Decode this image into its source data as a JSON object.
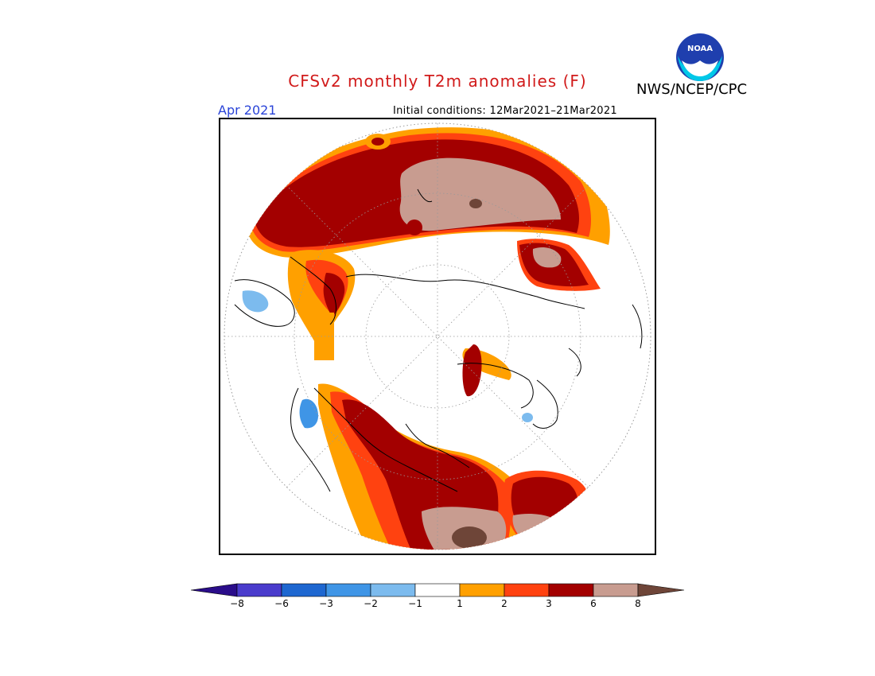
{
  "header": {
    "title": "CFSv2 monthly T2m anomalies (F)",
    "agency": "NWS/NCEP/CPC",
    "month": "Apr 2021",
    "initial_conditions": "Initial conditions: 12Mar2021–21Mar2021",
    "logo_text": "NOAA"
  },
  "colorbar": {
    "levels": [
      "-8",
      "-6",
      "-3",
      "-2",
      "-1",
      "1",
      "2",
      "3",
      "6",
      "8"
    ],
    "colors": [
      "#2a0d8a",
      "#4a3ccc",
      "#1e67d0",
      "#3f95e6",
      "#7cbbee",
      "#ffffff",
      "#ffa000",
      "#ff4210",
      "#a30000",
      "#c89c90",
      "#6e4538"
    ]
  },
  "map": {
    "projection": "polar-stereographic",
    "anomaly_colors": {
      "warm1": "#ffa000",
      "warm2": "#ff4210",
      "warm3": "#a30000",
      "warm4": "#c89c90",
      "warm5": "#6e4538",
      "cool1": "#7cbbee",
      "cool2": "#3f95e6"
    }
  }
}
